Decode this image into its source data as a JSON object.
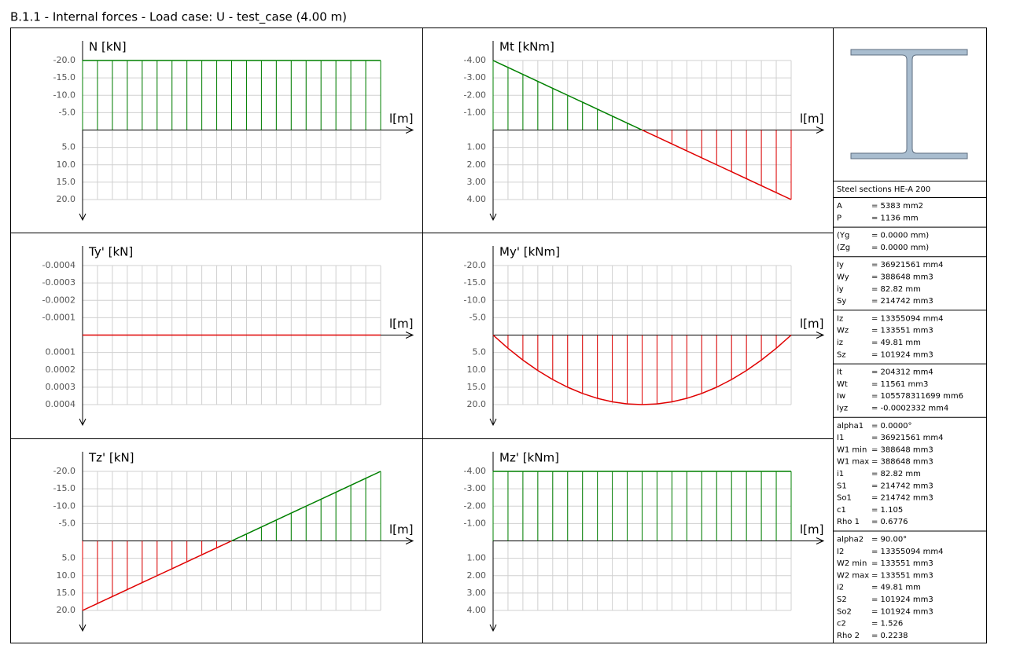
{
  "title": "B.1.1 - Internal forces - Load case: U - test_case (4.00 m)",
  "negative_color": "#008000",
  "positive_color": "#e00000",
  "chart_data": [
    {
      "type": "line",
      "title": "N [kN]",
      "x_label": "l[m]",
      "xlim": [
        0,
        4
      ],
      "ylim": [
        -20,
        20
      ],
      "yticks": [
        {
          "value": -20,
          "label": "-20.0"
        },
        {
          "value": -15,
          "label": "-15.0"
        },
        {
          "value": -10,
          "label": "-10.0"
        },
        {
          "value": -5,
          "label": "-5.0"
        },
        {
          "value": 5,
          "label": "5.0"
        },
        {
          "value": 10,
          "label": "10.0"
        },
        {
          "value": 15,
          "label": "15.0"
        },
        {
          "value": 20,
          "label": "20.0"
        }
      ],
      "x": [
        0,
        0.2,
        0.4,
        0.6,
        0.8,
        1,
        1.2,
        1.4,
        1.6,
        1.8,
        2,
        2.2,
        2.4,
        2.6,
        2.8,
        3,
        3.2,
        3.4,
        3.6,
        3.8,
        4
      ],
      "values": [
        -20,
        -20,
        -20,
        -20,
        -20,
        -20,
        -20,
        -20,
        -20,
        -20,
        -20,
        -20,
        -20,
        -20,
        -20,
        -20,
        -20,
        -20,
        -20,
        -20,
        -20
      ]
    },
    {
      "type": "line",
      "title": "Mt [kNm]",
      "x_label": "l[m]",
      "xlim": [
        0,
        4
      ],
      "ylim": [
        -4,
        4
      ],
      "yticks": [
        {
          "value": -4,
          "label": "-4.00"
        },
        {
          "value": -3,
          "label": "-3.00"
        },
        {
          "value": -2,
          "label": "-2.00"
        },
        {
          "value": -1,
          "label": "-1.00"
        },
        {
          "value": 1,
          "label": "1.00"
        },
        {
          "value": 2,
          "label": "2.00"
        },
        {
          "value": 3,
          "label": "3.00"
        },
        {
          "value": 4,
          "label": "4.00"
        }
      ],
      "x": [
        0,
        0.2,
        0.4,
        0.6,
        0.8,
        1,
        1.2,
        1.4,
        1.6,
        1.8,
        2,
        2.2,
        2.4,
        2.6,
        2.8,
        3,
        3.2,
        3.4,
        3.6,
        3.8,
        4
      ],
      "values": [
        -4,
        -3.6,
        -3.2,
        -2.8,
        -2.4,
        -2,
        -1.6,
        -1.2,
        -0.8,
        -0.4,
        0,
        0.4,
        0.8,
        1.2,
        1.6,
        2,
        2.4,
        2.8,
        3.2,
        3.6,
        4
      ]
    },
    {
      "type": "line",
      "title": "Ty' [kN]",
      "x_label": "l[m]",
      "xlim": [
        0,
        4
      ],
      "ylim": [
        -0.0004,
        0.0004
      ],
      "yticks": [
        -0.0004,
        -0.0003,
        -0.0002,
        -0.0001,
        0.0001,
        0.0002,
        0.0003,
        0.0004
      ],
      "x": [
        0,
        0.2,
        0.4,
        0.6,
        0.8,
        1,
        1.2,
        1.4,
        1.6,
        1.8,
        2,
        2.2,
        2.4,
        2.6,
        2.8,
        3,
        3.2,
        3.4,
        3.6,
        3.8,
        4
      ],
      "values": [
        0,
        0,
        0,
        0,
        0,
        0,
        0,
        0,
        0,
        0,
        0,
        0,
        0,
        0,
        0,
        0,
        0,
        0,
        0,
        0,
        0
      ]
    },
    {
      "type": "line",
      "title": "My' [kNm]",
      "x_label": "l[m]",
      "xlim": [
        0,
        4
      ],
      "ylim": [
        -20,
        20
      ],
      "yticks": [
        {
          "value": -20,
          "label": "-20.0"
        },
        {
          "value": -15,
          "label": "-15.0"
        },
        {
          "value": -10,
          "label": "-10.0"
        },
        {
          "value": -5,
          "label": "-5.0"
        },
        {
          "value": 5,
          "label": "5.0"
        },
        {
          "value": 10,
          "label": "10.0"
        },
        {
          "value": 15,
          "label": "15.0"
        },
        {
          "value": 20,
          "label": "20.0"
        }
      ],
      "x": [
        0,
        0.2,
        0.4,
        0.6,
        0.8,
        1,
        1.2,
        1.4,
        1.6,
        1.8,
        2,
        2.2,
        2.4,
        2.6,
        2.8,
        3,
        3.2,
        3.4,
        3.6,
        3.8,
        4
      ],
      "values": [
        0,
        3.8,
        7.2,
        10.2,
        12.8,
        15,
        16.8,
        18.2,
        19.2,
        19.8,
        20,
        19.8,
        19.2,
        18.2,
        16.8,
        15,
        12.8,
        10.2,
        7.2,
        3.8,
        0
      ]
    },
    {
      "type": "line",
      "title": "Tz' [kN]",
      "x_label": "l[m]",
      "xlim": [
        0,
        4
      ],
      "ylim": [
        -20,
        20
      ],
      "yticks": [
        {
          "value": -20,
          "label": "-20.0"
        },
        {
          "value": -15,
          "label": "-15.0"
        },
        {
          "value": -10,
          "label": "-10.0"
        },
        {
          "value": -5,
          "label": "-5.0"
        },
        {
          "value": 5,
          "label": "5.0"
        },
        {
          "value": 10,
          "label": "10.0"
        },
        {
          "value": 15,
          "label": "15.0"
        },
        {
          "value": 20,
          "label": "20.0"
        }
      ],
      "x": [
        0,
        0.2,
        0.4,
        0.6,
        0.8,
        1,
        1.2,
        1.4,
        1.6,
        1.8,
        2,
        2.2,
        2.4,
        2.6,
        2.8,
        3,
        3.2,
        3.4,
        3.6,
        3.8,
        4
      ],
      "values": [
        20,
        18,
        16,
        14,
        12,
        10,
        8,
        6,
        4,
        2,
        0,
        -2,
        -4,
        -6,
        -8,
        -10,
        -12,
        -14,
        -16,
        -18,
        -20
      ]
    },
    {
      "type": "line",
      "title": "Mz' [kNm]",
      "x_label": "l[m]",
      "xlim": [
        0,
        4
      ],
      "ylim": [
        -4,
        4
      ],
      "yticks": [
        {
          "value": -4,
          "label": "-4.00"
        },
        {
          "value": -3,
          "label": "-3.00"
        },
        {
          "value": -2,
          "label": "-2.00"
        },
        {
          "value": -1,
          "label": "-1.00"
        },
        {
          "value": 1,
          "label": "1.00"
        },
        {
          "value": 2,
          "label": "2.00"
        },
        {
          "value": 3,
          "label": "3.00"
        },
        {
          "value": 4,
          "label": "4.00"
        }
      ],
      "x": [
        0,
        0.2,
        0.4,
        0.6,
        0.8,
        1,
        1.2,
        1.4,
        1.6,
        1.8,
        2,
        2.2,
        2.4,
        2.6,
        2.8,
        3,
        3.2,
        3.4,
        3.6,
        3.8,
        4
      ],
      "values": [
        -4,
        -4,
        -4,
        -4,
        -4,
        -4,
        -4,
        -4,
        -4,
        -4,
        -4,
        -4,
        -4,
        -4,
        -4,
        -4,
        -4,
        -4,
        -4,
        -4,
        -4
      ]
    }
  ],
  "section": {
    "name": "Steel sections HE-A 200",
    "groups": [
      [
        {
          "label": "A",
          "value": "= 5383 mm2"
        },
        {
          "label": "P",
          "value": "= 1136 mm"
        }
      ],
      [
        {
          "label": "(Yg",
          "value": "= 0.0000 mm)"
        },
        {
          "label": "(Zg",
          "value": "= 0.0000 mm)"
        }
      ],
      [
        {
          "label": "Iy",
          "value": "= 36921561 mm4"
        },
        {
          "label": "Wy",
          "value": "= 388648 mm3"
        },
        {
          "label": "iy",
          "value": "= 82.82 mm"
        },
        {
          "label": "Sy",
          "value": "= 214742 mm3"
        }
      ],
      [
        {
          "label": "Iz",
          "value": "= 13355094 mm4"
        },
        {
          "label": "Wz",
          "value": "= 133551 mm3"
        },
        {
          "label": "iz",
          "value": "= 49.81 mm"
        },
        {
          "label": "Sz",
          "value": "= 101924 mm3"
        }
      ],
      [
        {
          "label": "It",
          "value": "= 204312 mm4"
        },
        {
          "label": "Wt",
          "value": "= 11561 mm3"
        },
        {
          "label": "Iw",
          "value": "= 105578311699 mm6"
        },
        {
          "label": "Iyz",
          "value": "= -0.0002332 mm4"
        }
      ],
      [
        {
          "label": "alpha1",
          "value": "= 0.0000°"
        },
        {
          "label": "I1",
          "value": "= 36921561 mm4"
        },
        {
          "label": "W1 min",
          "value": "= 388648 mm3"
        },
        {
          "label": "W1 max",
          "value": "= 388648 mm3"
        },
        {
          "label": "i1",
          "value": "= 82.82 mm"
        },
        {
          "label": "S1",
          "value": "= 214742 mm3"
        },
        {
          "label": "So1",
          "value": "= 214742 mm3"
        },
        {
          "label": "c1",
          "value": "= 1.105"
        },
        {
          "label": "Rho 1",
          "value": "= 0.6776"
        }
      ],
      [
        {
          "label": "alpha2",
          "value": "= 90.00°"
        },
        {
          "label": "I2",
          "value": "= 13355094 mm4"
        },
        {
          "label": "W2 min",
          "value": "= 133551 mm3"
        },
        {
          "label": "W2 max",
          "value": "= 133551 mm3"
        },
        {
          "label": "i2",
          "value": "= 49.81 mm"
        },
        {
          "label": "S2",
          "value": "= 101924 mm3"
        },
        {
          "label": "So2",
          "value": "= 101924 mm3"
        },
        {
          "label": "c2",
          "value": "= 1.526"
        },
        {
          "label": "Rho 2",
          "value": "= 0.2238"
        }
      ]
    ]
  }
}
